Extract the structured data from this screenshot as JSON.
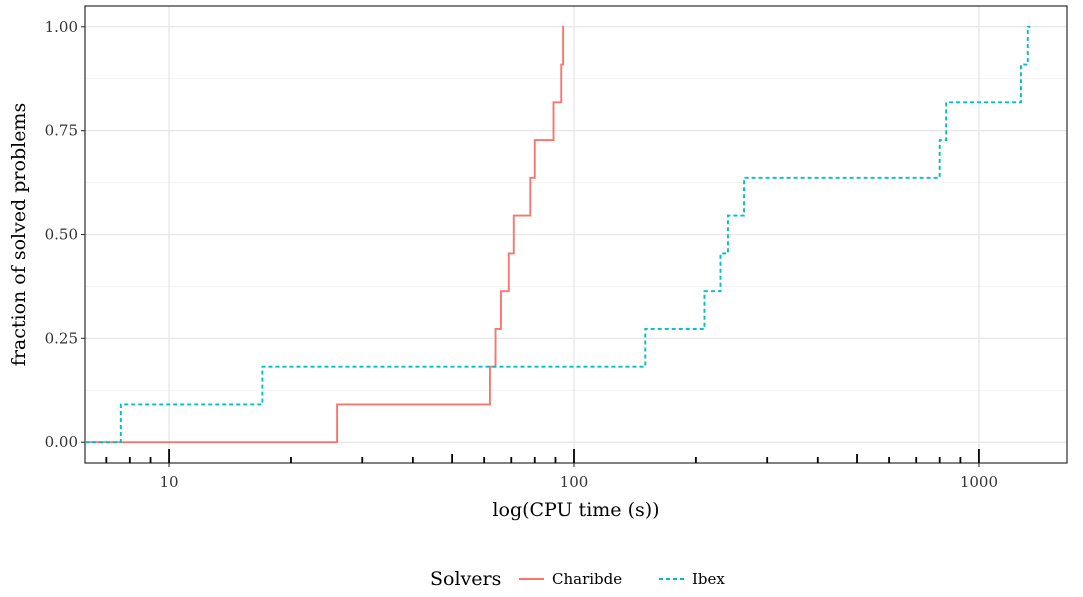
{
  "chart_data": {
    "type": "line",
    "subtype": "step",
    "xscale": "log",
    "xlabel": "log(CPU time (s))",
    "ylabel": "fraction of solved problems",
    "xlim": [
      6.2,
      1650
    ],
    "ylim": [
      -0.05,
      1.05
    ],
    "grid": true,
    "x_ticks": [
      10,
      100,
      1000
    ],
    "x_tick_labels": [
      "10",
      "100",
      "1000"
    ],
    "y_ticks": [
      0,
      0.25,
      0.5,
      0.75,
      1.0
    ],
    "y_tick_labels": [
      "0.00",
      "0.25",
      "0.50",
      "0.75",
      "1.00"
    ],
    "legend": {
      "title": "Solvers",
      "position": "bottom"
    },
    "series": [
      {
        "name": "Charibde",
        "color": "#F8766D",
        "linestyle": "solid",
        "x": [
          6.2,
          26,
          62,
          64,
          66,
          69,
          71,
          78,
          80,
          89,
          93,
          94,
          94.5
        ],
        "y": [
          0,
          0.0909,
          0.1818,
          0.2727,
          0.3636,
          0.4545,
          0.5455,
          0.6364,
          0.7273,
          0.8182,
          0.9091,
          1.0,
          1.0
        ]
      },
      {
        "name": "Ibex",
        "color": "#00BFC4",
        "linestyle": "dashed",
        "x": [
          6.2,
          7.6,
          17,
          150,
          210,
          230,
          240,
          263,
          800,
          830,
          1270,
          1320,
          1340
        ],
        "y": [
          0,
          0.0909,
          0.1818,
          0.2727,
          0.3636,
          0.4545,
          0.5455,
          0.6364,
          0.7273,
          0.8182,
          0.9091,
          1.0,
          1.0
        ]
      }
    ]
  }
}
